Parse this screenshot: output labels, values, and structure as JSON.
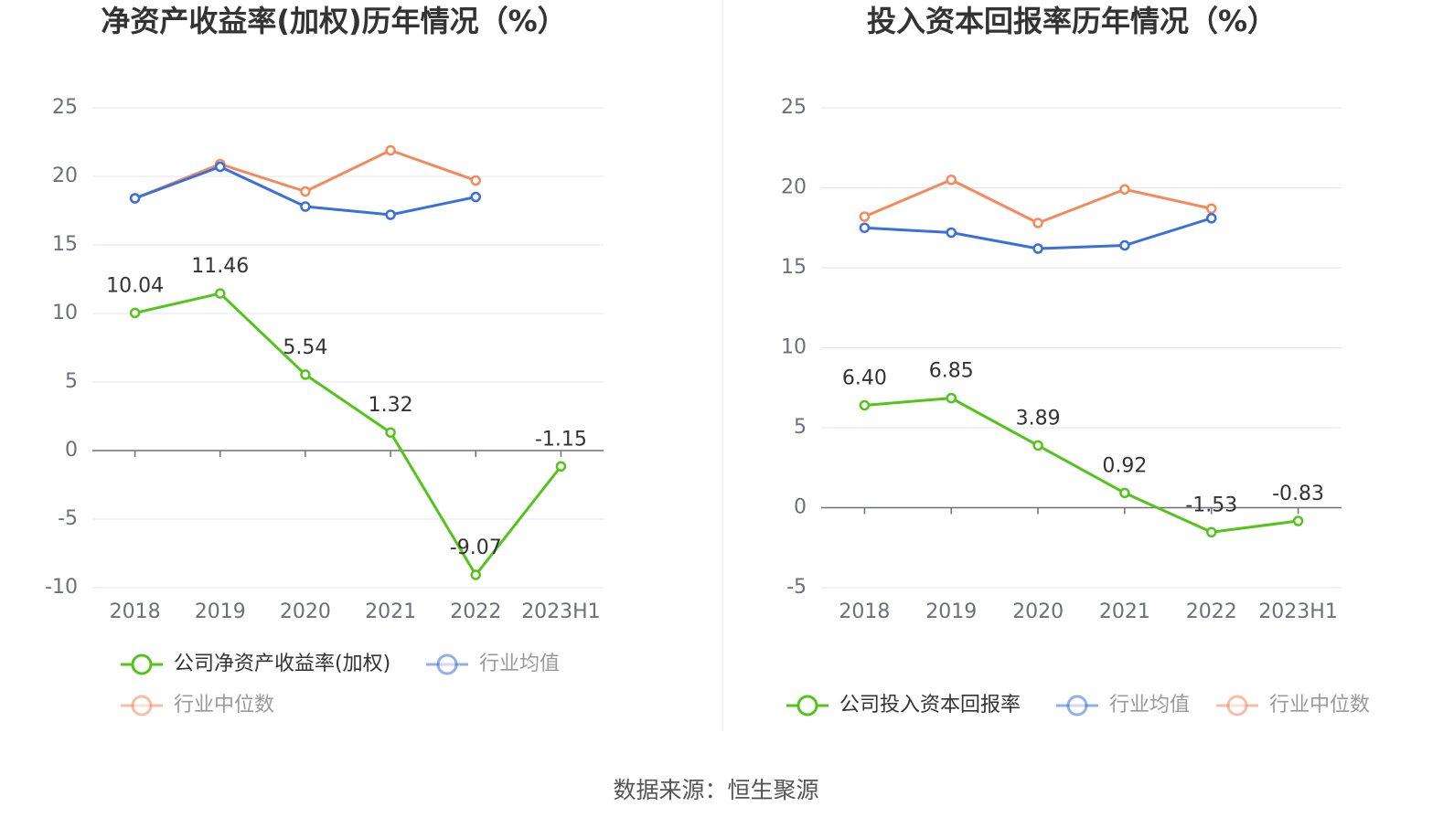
{
  "chart_data": [
    {
      "type": "line",
      "title": "净资产收益率(加权)历年情况（%）",
      "categories": [
        "2018",
        "2019",
        "2020",
        "2021",
        "2022",
        "2023H1"
      ],
      "series": [
        {
          "name": "公司净资产收益率(加权)",
          "color": "#52c41a",
          "values": [
            10.04,
            11.46,
            5.54,
            1.32,
            -9.07,
            -1.15
          ],
          "show_labels": true
        },
        {
          "name": "行业均值",
          "color": "#3a6fdc",
          "values": [
            18.4,
            20.7,
            17.8,
            17.2,
            18.5,
            null
          ]
        },
        {
          "name": "行业中位数",
          "color": "#f28a5c",
          "values": [
            18.4,
            20.9,
            18.9,
            21.9,
            19.7,
            null
          ]
        }
      ],
      "ylim": [
        -10,
        25
      ],
      "yticks": [
        -10,
        -5,
        0,
        5,
        10,
        15,
        20,
        25
      ],
      "grid": true,
      "legend": "bottom"
    },
    {
      "type": "line",
      "title": "投入资本回报率历年情况（%）",
      "categories": [
        "2018",
        "2019",
        "2020",
        "2021",
        "2022",
        "2023H1"
      ],
      "series": [
        {
          "name": "公司投入资本回报率",
          "color": "#52c41a",
          "values": [
            6.4,
            6.85,
            3.89,
            0.92,
            -1.53,
            -0.83
          ],
          "value_labels": [
            "6.40",
            "6.85",
            "3.89",
            "0.92",
            "-1.53",
            "-0.83"
          ],
          "show_labels": true
        },
        {
          "name": "行业均值",
          "color": "#3a6fdc",
          "values": [
            17.5,
            17.2,
            16.2,
            16.4,
            18.1,
            null
          ]
        },
        {
          "name": "行业中位数",
          "color": "#f28a5c",
          "values": [
            18.2,
            20.5,
            17.8,
            19.9,
            18.7,
            null
          ]
        }
      ],
      "ylim": [
        -5,
        25
      ],
      "yticks": [
        -5,
        0,
        5,
        10,
        15,
        20,
        25
      ],
      "grid": true,
      "legend": "bottom"
    }
  ],
  "source": "数据来源：恒生聚源"
}
